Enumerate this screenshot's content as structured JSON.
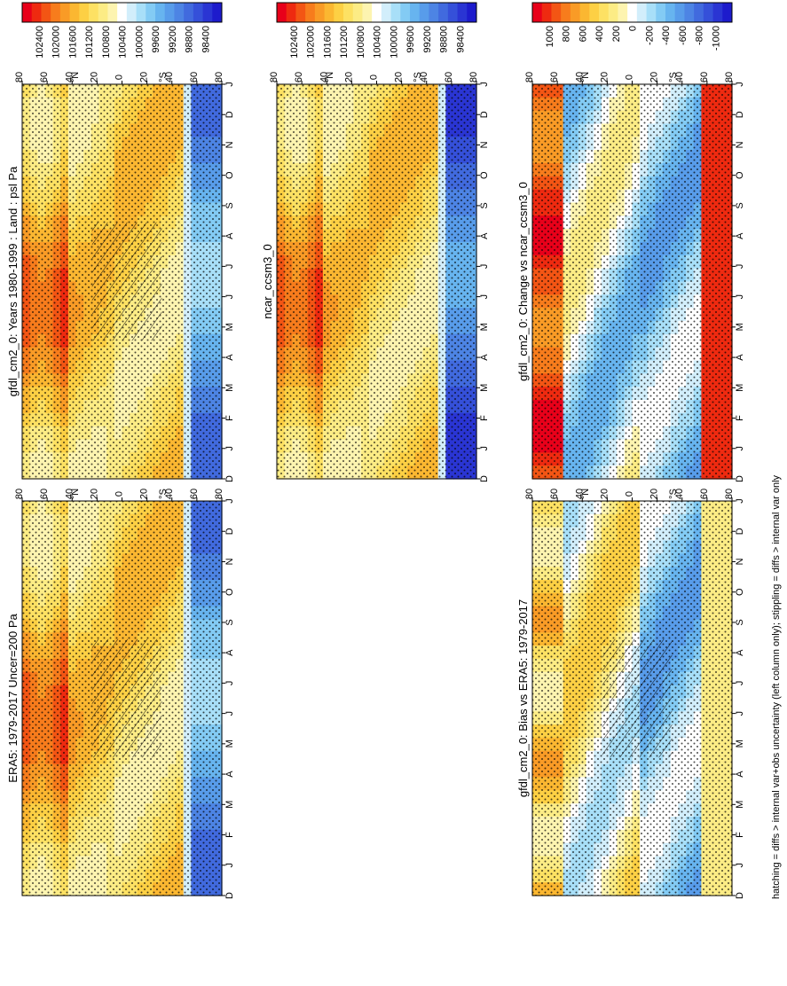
{
  "footnote": "hatching = diffs > internal var+obs uncertainty (left column only); stippling = diffs > internal var only",
  "color_scales": {
    "absolute": {
      "labels": [
        "102400",
        "102000",
        "101600",
        "101200",
        "100800",
        "100400",
        "100000",
        "99600",
        "99200",
        "98800",
        "98400"
      ],
      "colors": [
        "#e8001a",
        "#ee2a10",
        "#f35514",
        "#f77c1c",
        "#f99b26",
        "#fbb731",
        "#fdd044",
        "#fde163",
        "#fcec85",
        "#fdf4b0",
        "#ffffff",
        "#d2eefb",
        "#a8dff8",
        "#83cbf4",
        "#67b4ef",
        "#589cea",
        "#4d84e4",
        "#416ade",
        "#3550d9",
        "#2a35d3",
        "#1d1bcc"
      ]
    },
    "difference": {
      "labels": [
        "1000",
        "800",
        "600",
        "400",
        "200",
        "0",
        "-200",
        "-400",
        "-600",
        "-800",
        "-1000"
      ],
      "colors": [
        "#e8001a",
        "#ee2a10",
        "#f35514",
        "#f77c1c",
        "#f99b26",
        "#fbb731",
        "#fdd044",
        "#fde163",
        "#fcec85",
        "#fdf4b0",
        "#ffffff",
        "#d2eefb",
        "#a8dff8",
        "#83cbf4",
        "#67b4ef",
        "#589cea",
        "#4d84e4",
        "#416ade",
        "#3550d9",
        "#2a35d3",
        "#1d1bcc"
      ]
    }
  },
  "chart_data": [
    {
      "id": "p1",
      "type": "heatmap",
      "title": "gfdl_cm2_0: Years 1980-1999 : Land : psl Pa",
      "scale": "absolute",
      "hatching": true,
      "stippling": true,
      "month_labels": [
        "D",
        "J",
        "F",
        "M",
        "A",
        "M",
        "J",
        "J",
        "A",
        "S",
        "O",
        "N",
        "D",
        "J"
      ],
      "lat_labels": [
        "80",
        "60",
        "40",
        "20",
        "0",
        "20",
        "40",
        "60",
        "80"
      ],
      "lat_hemi": {
        "N": "°N",
        "S": "°S"
      }
    },
    {
      "id": "p2",
      "type": "heatmap",
      "title": "ncar_ccsm3_0",
      "scale": "absolute",
      "hatching": false,
      "stippling": true,
      "month_labels": [
        "D",
        "J",
        "F",
        "M",
        "A",
        "M",
        "J",
        "J",
        "A",
        "S",
        "O",
        "N",
        "D",
        "J"
      ],
      "lat_labels": [
        "80",
        "60",
        "40",
        "20",
        "0",
        "20",
        "40",
        "60",
        "80"
      ],
      "lat_hemi": {
        "N": "°N",
        "S": "°S"
      }
    },
    {
      "id": "p3",
      "type": "heatmap",
      "title": "ERA5: 1979-2017 Uncer=200 Pa",
      "scale": "absolute",
      "hatching": true,
      "stippling": true,
      "month_labels": [
        "D",
        "J",
        "F",
        "M",
        "A",
        "M",
        "J",
        "J",
        "A",
        "S",
        "O",
        "N",
        "D",
        "J"
      ],
      "lat_labels": [
        "80",
        "60",
        "40",
        "20",
        "0",
        "20",
        "40",
        "60",
        "80"
      ],
      "lat_hemi": {
        "N": "°N",
        "S": "°S"
      }
    },
    {
      "id": "p4",
      "type": "heatmap",
      "title": "gfdl_cm2_0: Change vs ncar_ccsm3_0",
      "scale": "difference",
      "hatching": false,
      "stippling": true,
      "month_labels": [
        "D",
        "J",
        "F",
        "M",
        "A",
        "M",
        "J",
        "J",
        "A",
        "S",
        "O",
        "N",
        "D",
        "J"
      ],
      "lat_labels": [
        "80",
        "60",
        "40",
        "20",
        "0",
        "20",
        "40",
        "60",
        "80"
      ],
      "lat_hemi": {
        "N": "°N",
        "S": "°S"
      }
    },
    {
      "id": "p5",
      "type": "heatmap",
      "title": "gfdl_cm2_0: Bias vs ERA5: 1979-2017",
      "scale": "difference",
      "hatching": true,
      "stippling": true,
      "month_labels": [
        "D",
        "J",
        "F",
        "M",
        "A",
        "M",
        "J",
        "J",
        "A",
        "S",
        "O",
        "N",
        "D",
        "J"
      ],
      "lat_labels": [
        "80",
        "60",
        "40",
        "20",
        "0",
        "20",
        "40",
        "60",
        "80"
      ],
      "lat_hemi": {
        "N": "°N",
        "S": "°S"
      }
    }
  ]
}
